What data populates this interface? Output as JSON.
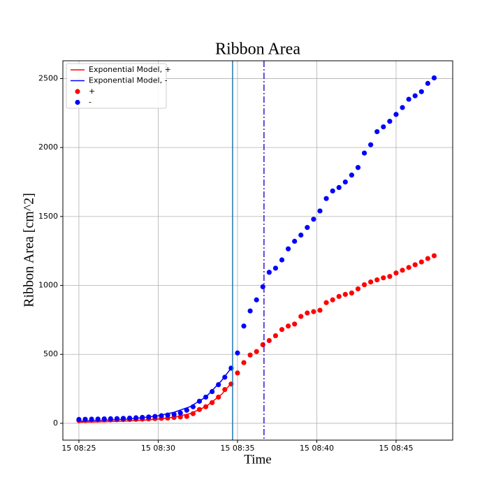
{
  "chart_data": {
    "type": "scatter",
    "title": "Ribbon Area",
    "xlabel": "Time",
    "ylabel": "Ribbon Area [cm^2]",
    "xlim": [
      23.99,
      48.57
    ],
    "ylim": [
      -122,
      2629
    ],
    "xticks": [
      {
        "value": 25,
        "label": "15 08:25"
      },
      {
        "value": 30,
        "label": "15 08:30"
      },
      {
        "value": 35,
        "label": "15 08:35"
      },
      {
        "value": 40,
        "label": "15 08:40"
      },
      {
        "value": 45,
        "label": "15 08:45"
      }
    ],
    "yticks": [
      0,
      500,
      1000,
      1500,
      2000,
      2500
    ],
    "grid": true,
    "legend": "upper left",
    "vlines": [
      {
        "x": 34.69,
        "color": "#1f77b4",
        "style": "solid"
      },
      {
        "x": 36.67,
        "color": "#3a10d0",
        "style": "dashdot"
      }
    ],
    "series": [
      {
        "name": "Exponential Model, +",
        "color": "#ff0000",
        "style": "line",
        "x": [
          25,
          26,
          27,
          28,
          29,
          30,
          31,
          32,
          33,
          34,
          34.6
        ],
        "values": [
          8,
          10,
          13,
          17,
          22,
          30,
          45,
          70,
          120,
          210,
          290
        ]
      },
      {
        "name": "Exponential Model, -",
        "color": "#0000ff",
        "style": "line",
        "x": [
          25,
          26,
          27,
          28,
          29,
          30,
          31,
          32,
          33,
          34,
          34.6
        ],
        "values": [
          15,
          19,
          24,
          30,
          40,
          55,
          80,
          120,
          190,
          310,
          400
        ]
      },
      {
        "name": "+",
        "color": "#ff0000",
        "style": "scatter",
        "x": [
          25,
          25.4,
          25.8,
          26.2,
          26.6,
          27,
          27.4,
          27.8,
          28.2,
          28.6,
          29,
          29.4,
          29.8,
          30.2,
          30.6,
          31,
          31.4,
          31.8,
          32.2,
          32.6,
          33,
          33.4,
          33.8,
          34.2,
          34.6,
          35,
          35.4,
          35.8,
          36.2,
          36.6,
          37,
          37.4,
          37.8,
          38.2,
          38.6,
          39,
          39.4,
          39.8,
          40.2,
          40.6,
          41,
          41.4,
          41.8,
          42.2,
          42.6,
          43,
          43.4,
          43.8,
          44.2,
          44.6,
          45,
          45.4,
          45.8,
          46.2,
          46.6,
          47,
          47.4
        ],
        "values": [
          20,
          21,
          22,
          23,
          24,
          25,
          26,
          27,
          28,
          29,
          30,
          32,
          34,
          36,
          38,
          42,
          46,
          50,
          70,
          100,
          120,
          150,
          190,
          245,
          285,
          365,
          440,
          495,
          520,
          570,
          600,
          635,
          680,
          705,
          720,
          775,
          800,
          810,
          820,
          875,
          895,
          920,
          935,
          945,
          975,
          1005,
          1025,
          1040,
          1055,
          1065,
          1090,
          1110,
          1130,
          1150,
          1170,
          1195,
          1215
        ]
      },
      {
        "name": "-",
        "color": "#0000ff",
        "style": "scatter",
        "x": [
          25,
          25.4,
          25.8,
          26.2,
          26.6,
          27,
          27.4,
          27.8,
          28.2,
          28.6,
          29,
          29.4,
          29.8,
          30.2,
          30.6,
          31,
          31.4,
          31.8,
          32.2,
          32.6,
          33,
          33.4,
          33.8,
          34.2,
          34.6,
          35,
          35.4,
          35.8,
          36.2,
          36.6,
          37,
          37.4,
          37.8,
          38.2,
          38.6,
          39,
          39.4,
          39.8,
          40.2,
          40.6,
          41,
          41.4,
          41.8,
          42.2,
          42.6,
          43,
          43.4,
          43.8,
          44.2,
          44.6,
          45,
          45.4,
          45.8,
          46.2,
          46.6,
          47,
          47.4
        ],
        "values": [
          28,
          29,
          30,
          31,
          32,
          33,
          34,
          36,
          38,
          40,
          43,
          46,
          50,
          55,
          60,
          65,
          75,
          95,
          120,
          160,
          190,
          230,
          280,
          334,
          400,
          510,
          705,
          815,
          895,
          990,
          1095,
          1125,
          1185,
          1265,
          1320,
          1365,
          1420,
          1480,
          1540,
          1630,
          1685,
          1710,
          1750,
          1800,
          1855,
          1960,
          2020,
          2115,
          2150,
          2190,
          2240,
          2290,
          2350,
          2375,
          2405,
          2465,
          2505
        ]
      }
    ]
  }
}
